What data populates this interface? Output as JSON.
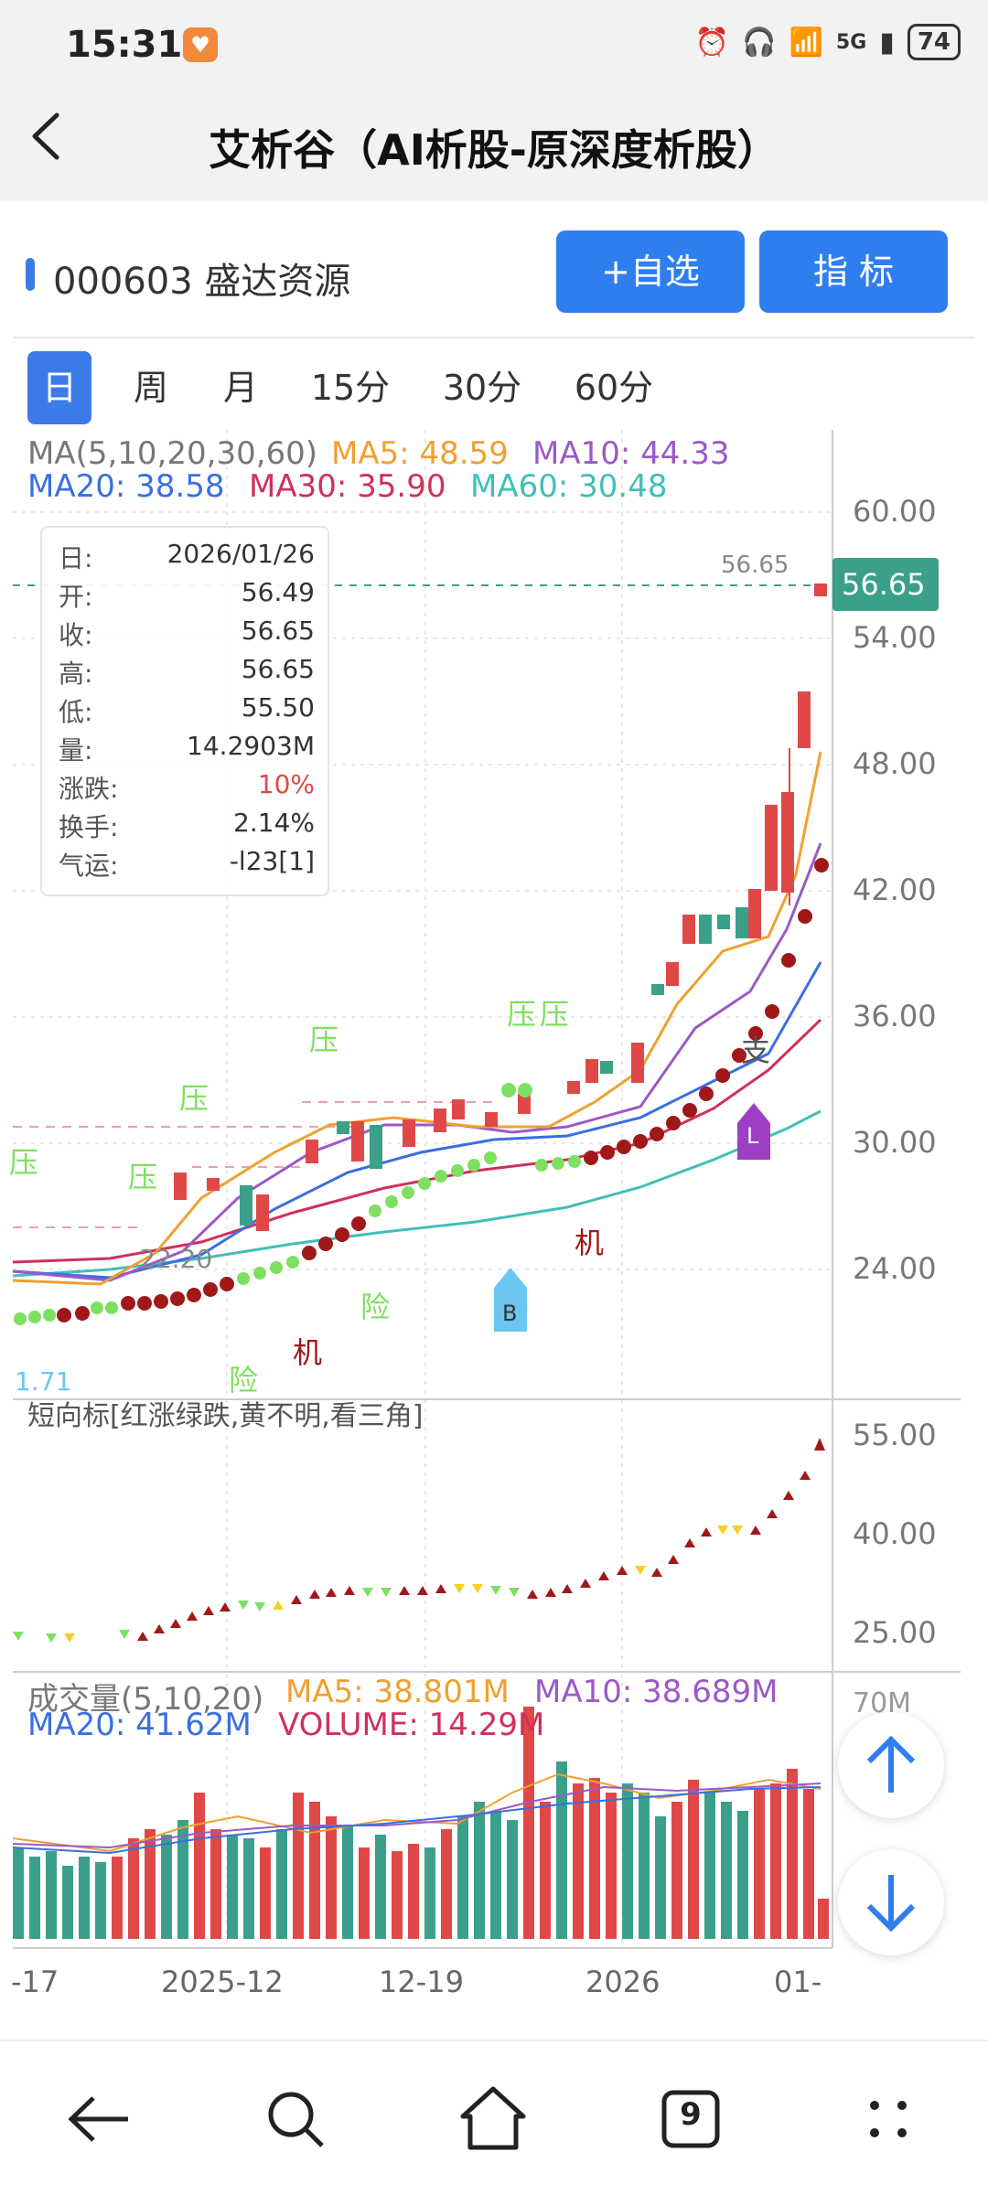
{
  "status": {
    "time": "15:31",
    "battery": "74",
    "network": "5G"
  },
  "header": {
    "title": "艾析谷（AI析股-原深度析股）"
  },
  "stock": {
    "code_name": "000603 盛达资源",
    "add_watch": "+自选",
    "indicators": "指  标"
  },
  "tabs": [
    {
      "label": "日",
      "active": true
    },
    {
      "label": "周",
      "active": false
    },
    {
      "label": "月",
      "active": false
    },
    {
      "label": "15分",
      "active": false
    },
    {
      "label": "30分",
      "active": false
    },
    {
      "label": "60分",
      "active": false
    }
  ],
  "ma": {
    "title": "MA(5,10,20,30,60)",
    "ma5": "MA5: 48.59",
    "ma10": "MA10: 44.33",
    "ma20": "MA20: 38.58",
    "ma30": "MA30: 35.90",
    "ma60": "MA60: 30.48"
  },
  "colors": {
    "ma5": "#f0a030",
    "ma10": "#9b59c6",
    "ma20": "#3a6fe0",
    "ma30": "#d0305a",
    "ma60": "#40bfb8",
    "up": "#e04848",
    "down": "#3aa08a",
    "accent": "#2f7ef0"
  },
  "info": [
    {
      "k": "日:",
      "v": "2026/01/26"
    },
    {
      "k": "开:",
      "v": "56.49"
    },
    {
      "k": "收:",
      "v": "56.65"
    },
    {
      "k": "高:",
      "v": "56.65"
    },
    {
      "k": "低:",
      "v": "55.50"
    },
    {
      "k": "量:",
      "v": "14.2903M"
    },
    {
      "k": "涨跌:",
      "v": "10%"
    },
    {
      "k": "换手:",
      "v": "2.14%"
    },
    {
      "k": "气运:",
      "v": "-l23[1]"
    }
  ],
  "price_axis": [
    "60.00",
    "54.00",
    "48.00",
    "42.00",
    "36.00",
    "30.00",
    "24.00"
  ],
  "last_price": "56.65",
  "last_price_label": "56.65",
  "low_label": "22.20",
  "low_partial": "1.71",
  "signal_words": {
    "ya": "压",
    "xian": "险",
    "ji": "机",
    "zhi": "支",
    "B": "B",
    "L": "L"
  },
  "short_indicator": {
    "title": "短向标[红涨绿跌,黄不明,看三角]",
    "axis": [
      "55.00",
      "40.00",
      "25.00"
    ]
  },
  "volume": {
    "title": "成交量(5,10,20)",
    "ma5": "MA5: 38.801M",
    "ma10": "MA10: 38.689M",
    "ma20": "MA20: 41.62M",
    "vol": "VOLUME: 14.29M",
    "axis_top": "70M"
  },
  "date_axis": [
    "-17",
    "2025-12",
    "12-19",
    "2026",
    "01-"
  ],
  "nav": {
    "recent_count": "9"
  }
}
